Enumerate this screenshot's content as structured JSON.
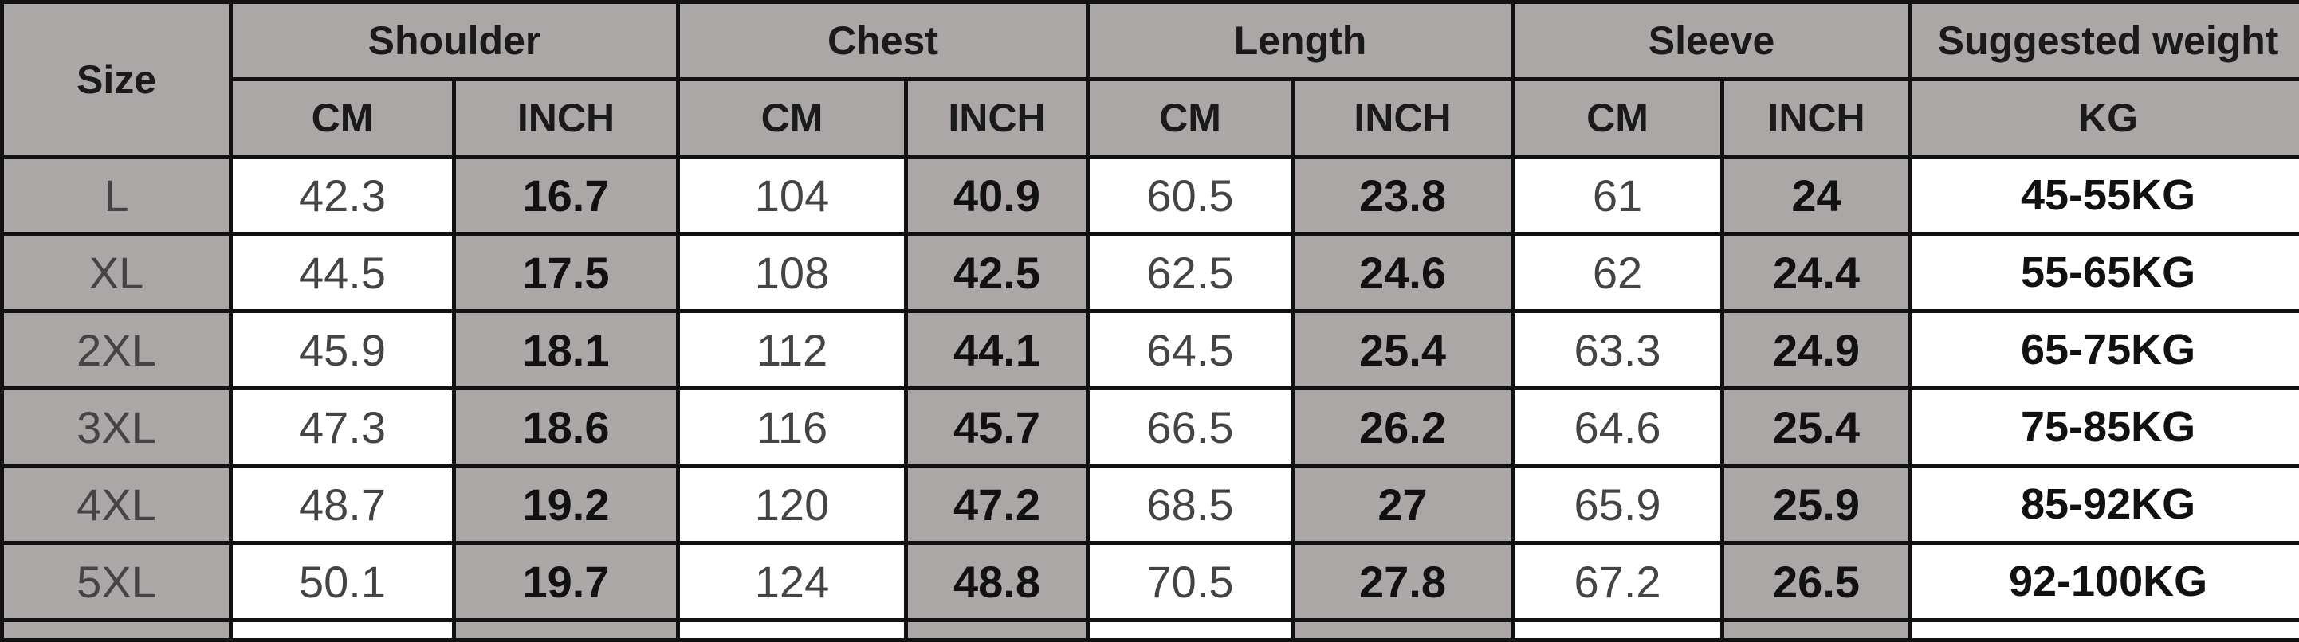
{
  "table": {
    "size_header": "Size",
    "groups": [
      "Shoulder",
      "Chest",
      "Length",
      "Sleeve",
      "Suggested weight"
    ],
    "units": [
      "CM",
      "INCH",
      "CM",
      "INCH",
      "CM",
      "INCH",
      "CM",
      "INCH",
      "KG"
    ],
    "rows": [
      {
        "size": "L",
        "values": [
          "42.3",
          "16.7",
          "104",
          "40.9",
          "60.5",
          "23.8",
          "61",
          "24",
          "45-55KG"
        ]
      },
      {
        "size": "XL",
        "values": [
          "44.5",
          "17.5",
          "108",
          "42.5",
          "62.5",
          "24.6",
          "62",
          "24.4",
          "55-65KG"
        ]
      },
      {
        "size": "2XL",
        "values": [
          "45.9",
          "18.1",
          "112",
          "44.1",
          "64.5",
          "25.4",
          "63.3",
          "24.9",
          "65-75KG"
        ]
      },
      {
        "size": "3XL",
        "values": [
          "47.3",
          "18.6",
          "116",
          "45.7",
          "66.5",
          "26.2",
          "64.6",
          "25.4",
          "75-85KG"
        ]
      },
      {
        "size": "4XL",
        "values": [
          "48.7",
          "19.2",
          "120",
          "47.2",
          "68.5",
          "27",
          "65.9",
          "25.9",
          "85-92KG"
        ]
      },
      {
        "size": "5XL",
        "values": [
          "50.1",
          "19.7",
          "124",
          "48.8",
          "70.5",
          "27.8",
          "67.2",
          "26.5",
          "92-100KG"
        ]
      }
    ]
  },
  "colors": {
    "header_gray": "#aba7a7",
    "border": "#111111",
    "cell_white": "#ffffff"
  }
}
